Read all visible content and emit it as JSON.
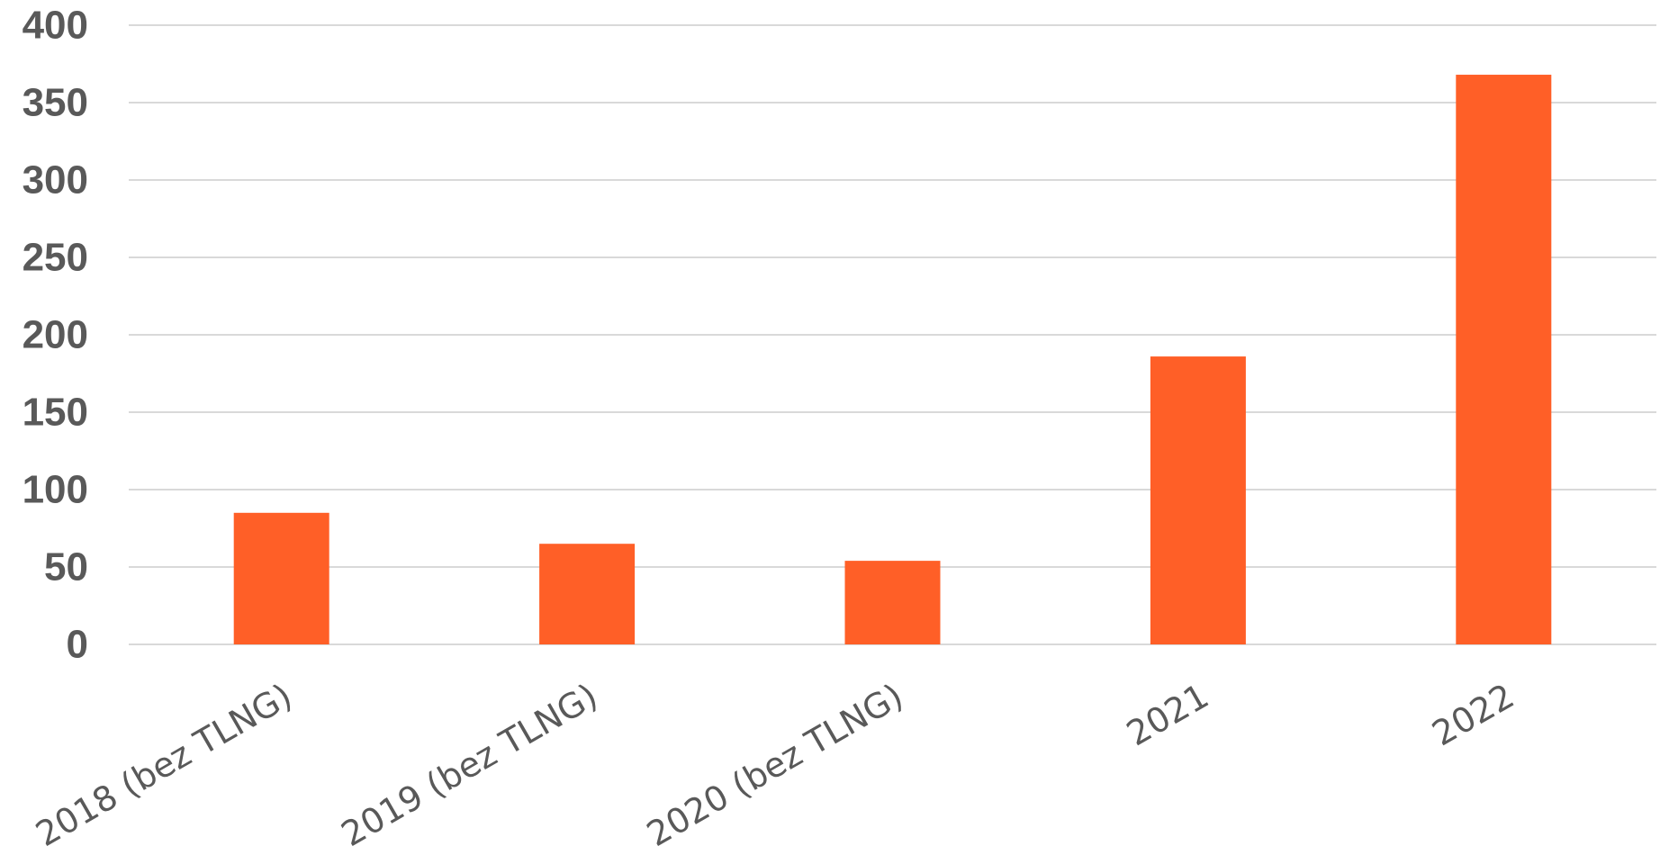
{
  "chart_data": {
    "type": "bar",
    "title": "",
    "xlabel": "",
    "ylabel": "",
    "categories": [
      "2018 (bez TLNG)",
      "2019 (bez TLNG)",
      "2020 (bez TLNG)",
      "2021",
      "2022"
    ],
    "values": [
      85,
      65,
      54,
      186,
      368
    ],
    "ylim": [
      0,
      400
    ],
    "yticks": [
      "0",
      "50",
      "100",
      "150",
      "200",
      "250",
      "300",
      "350",
      "400"
    ],
    "grid": true,
    "legend": "none",
    "bar_color": "#FF5F27"
  }
}
